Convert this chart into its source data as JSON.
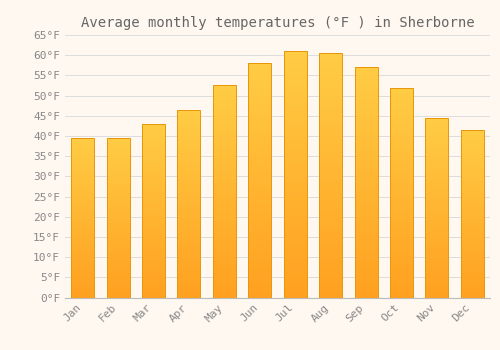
{
  "title": "Average monthly temperatures (°F ) in Sherborne",
  "months": [
    "Jan",
    "Feb",
    "Mar",
    "Apr",
    "May",
    "Jun",
    "Jul",
    "Aug",
    "Sep",
    "Oct",
    "Nov",
    "Dec"
  ],
  "values": [
    39.5,
    39.5,
    43.0,
    46.5,
    52.5,
    58.0,
    61.0,
    60.5,
    57.0,
    52.0,
    44.5,
    41.5
  ],
  "bar_color_top": "#FFCC44",
  "bar_color_bottom": "#FFA020",
  "bar_edge_color": "#E8960A",
  "background_color": "#FFF8F0",
  "grid_color": "#DDDDDD",
  "ylim": [
    0,
    65
  ],
  "yticks": [
    0,
    5,
    10,
    15,
    20,
    25,
    30,
    35,
    40,
    45,
    50,
    55,
    60,
    65
  ],
  "title_fontsize": 10,
  "tick_fontsize": 8,
  "tick_font_color": "#888888",
  "title_color": "#666666"
}
